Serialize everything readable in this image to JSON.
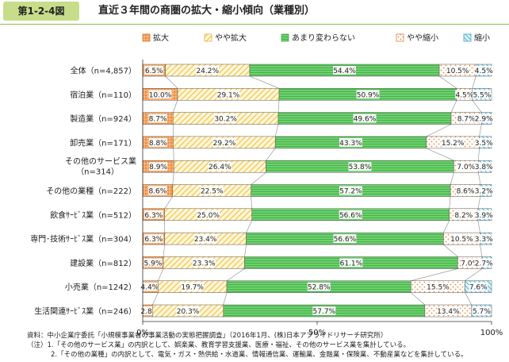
{
  "header": {
    "figure_number": "第1-2-4図",
    "title": "直近３年間の商圏の拡大・縮小傾向（業種別）"
  },
  "colors": {
    "badge": "#c7dd8a",
    "expand": "#f08a3a",
    "slight_expand": "#f5c242",
    "no_change": "#58c45a",
    "slight_shrink": "#f08a3a",
    "shrink": "#3ab0d6"
  },
  "chart_data": {
    "type": "bar",
    "orientation": "horizontal",
    "stacked": true,
    "categories": [
      "全体（n=4,857）",
      "宿泊業（n=110）",
      "製造業（n=924）",
      "卸売業（n=171）",
      "その他のサービス業\n（n=314）",
      "その他の業種（n=222）",
      "飲食ｻｰﾋﾞｽ業（n=512）",
      "専門･技術ｻｰﾋﾞｽ業（n=304）",
      "建設業（n=812）",
      "小売業（n=1242）",
      "生活関連ｻｰﾋﾞｽ業（n=246）"
    ],
    "series": [
      {
        "name": "拡大",
        "values": [
          6.5,
          10.0,
          8.7,
          8.8,
          8.9,
          8.6,
          6.3,
          6.3,
          5.9,
          4.4,
          2.8
        ],
        "labels": [
          "6.5%",
          "10.0%",
          "8.7%",
          "8.8%",
          "8.9%",
          "8.6%",
          "6.3%",
          "6.3%",
          "5.9%",
          "4.4%",
          "2.8%"
        ]
      },
      {
        "name": "やや拡大",
        "values": [
          24.2,
          29.1,
          30.2,
          29.2,
          26.4,
          22.5,
          25.0,
          23.4,
          23.3,
          19.7,
          20.3
        ],
        "labels": [
          "24.2%",
          "29.1%",
          "30.2%",
          "29.2%",
          "26.4%",
          "22.5%",
          "25.0%",
          "23.4%",
          "23.3%",
          "19.7%",
          "20.3%"
        ]
      },
      {
        "name": "あまり変わらない",
        "values": [
          54.4,
          50.9,
          49.6,
          43.3,
          53.8,
          57.2,
          56.6,
          56.6,
          61.1,
          52.8,
          57.7
        ],
        "labels": [
          "54.4%",
          "50.9%",
          "49.6%",
          "43.3%",
          "53.8%",
          "57.2%",
          "56.6%",
          "56.6%",
          "61.1%",
          "52.8%",
          "57.7%"
        ]
      },
      {
        "name": "やや縮小",
        "values": [
          10.5,
          4.5,
          8.7,
          15.2,
          7.0,
          8.6,
          8.2,
          10.5,
          7.0,
          15.5,
          13.4
        ],
        "labels": [
          "10.5%",
          "4.5%",
          "8.7%",
          "15.2%",
          "7.0%",
          "8.6%",
          "8.2%",
          "10.5%",
          "7.0%",
          "15.5%",
          "13.4%"
        ]
      },
      {
        "name": "縮小",
        "values": [
          4.5,
          5.5,
          2.9,
          3.5,
          3.8,
          3.2,
          3.9,
          3.3,
          2.7,
          7.6,
          5.7
        ],
        "labels": [
          "4.5%",
          "5.5%",
          "2.9%",
          "3.5%",
          "3.8%",
          "3.2%",
          "3.9%",
          "3.3%",
          "2.7%",
          "7.6%",
          "5.7%"
        ]
      }
    ],
    "x_ticks": [
      "0%",
      "50%",
      "100%"
    ],
    "xlim": [
      0,
      100
    ],
    "legend_position": "top",
    "grid": false,
    "connector_lines": true
  },
  "notes": {
    "source": "資料：中小企業庁委託「小規模事業者の事業活動の実態把握調査」（2016年1月、(株)日本アプライドリサーチ研究所）",
    "note1": "（注）1.「その他のサービス業」の内訳として、娯楽業、教育学習支援業、医療・福祉、その他のサービス業を集計している。",
    "note2": "2.「その他の業種」の内訳として、電気・ガス・熱供給・水道業、情報通信業、運輸業、金融業・保険業、不動産業などを集計している。"
  }
}
